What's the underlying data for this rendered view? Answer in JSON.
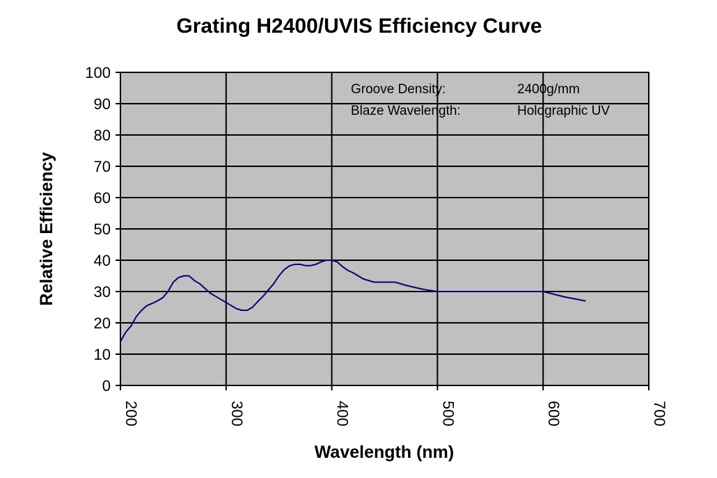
{
  "chart_data": {
    "type": "line",
    "title": "Grating H2400/UVIS Efficiency Curve",
    "xlabel": "Wavelength (nm)",
    "ylabel": "Relative Efficiency",
    "xlim": [
      200,
      700
    ],
    "ylim": [
      0,
      100
    ],
    "x_ticks": [
      "200",
      "300",
      "400",
      "500",
      "600",
      "700"
    ],
    "y_ticks": [
      "0",
      "10",
      "20",
      "30",
      "40",
      "50",
      "60",
      "70",
      "80",
      "90",
      "100"
    ],
    "grid": true,
    "plot_background": "#c0c0c0",
    "series": [
      {
        "name": "Efficiency",
        "color": "#000080",
        "x": [
          200,
          205,
          210,
          215,
          220,
          225,
          230,
          235,
          240,
          245,
          250,
          255,
          260,
          265,
          270,
          275,
          280,
          285,
          290,
          295,
          300,
          305,
          310,
          315,
          320,
          325,
          330,
          335,
          340,
          345,
          350,
          355,
          360,
          365,
          370,
          375,
          380,
          385,
          390,
          395,
          400,
          405,
          410,
          415,
          420,
          430,
          440,
          450,
          460,
          470,
          480,
          490,
          500,
          520,
          540,
          560,
          580,
          600,
          620,
          640
        ],
        "y": [
          14,
          17,
          19,
          22,
          24,
          25.5,
          26.2,
          27,
          28,
          30,
          33,
          34.5,
          35,
          35,
          33.5,
          32.5,
          31,
          29.5,
          28.5,
          27.5,
          26.5,
          25.5,
          24.5,
          24,
          24,
          25,
          26.8,
          28.5,
          30.5,
          32.5,
          35,
          37,
          38.2,
          38.7,
          38.7,
          38.3,
          38.3,
          38.7,
          39.5,
          40,
          40,
          39.5,
          38,
          36.8,
          36,
          34,
          33,
          33,
          33,
          32,
          31.2,
          30.5,
          30,
          30,
          30,
          30,
          30,
          30,
          28.3,
          27
        ]
      }
    ],
    "annotations": [
      {
        "label": "Groove Density:",
        "value": "2400g/mm"
      },
      {
        "label": "Blaze Wavelength:",
        "value": "Holographic UV"
      }
    ]
  }
}
